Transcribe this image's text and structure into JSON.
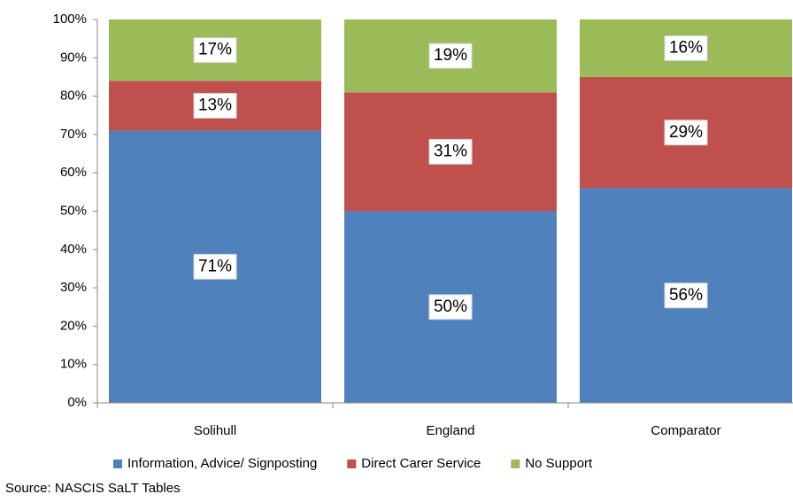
{
  "chart_data": {
    "type": "stacked_bar",
    "categories": [
      "Solihull",
      "England",
      "Comparator"
    ],
    "series": [
      {
        "name": "Information, Advice/ Signposting",
        "color": "#4f81bd",
        "values": [
          71,
          50,
          56
        ],
        "value_labels": [
          "71%",
          "50%",
          "56%"
        ]
      },
      {
        "name": "Direct Carer Service",
        "color": "#c0504d",
        "values": [
          13,
          31,
          29
        ],
        "value_labels": [
          "13%",
          "31%",
          "29%"
        ]
      },
      {
        "name": "No Support",
        "color": "#9bbb59",
        "values": [
          17,
          19,
          16
        ],
        "value_labels": [
          "17%",
          "19%",
          "16%"
        ]
      }
    ],
    "ylim": [
      0,
      100
    ],
    "yticks": [
      {
        "value": 0,
        "label": "0%"
      },
      {
        "value": 10,
        "label": "10%"
      },
      {
        "value": 20,
        "label": "20%"
      },
      {
        "value": 30,
        "label": "30%"
      },
      {
        "value": 40,
        "label": "40%"
      },
      {
        "value": 50,
        "label": "50%"
      },
      {
        "value": 60,
        "label": "60%"
      },
      {
        "value": 70,
        "label": "70%"
      },
      {
        "value": 80,
        "label": "80%"
      },
      {
        "value": 90,
        "label": "90%"
      },
      {
        "value": 100,
        "label": "100%"
      }
    ],
    "legend": "bottom",
    "source": "Source: NASCIS SaLT Tables"
  }
}
